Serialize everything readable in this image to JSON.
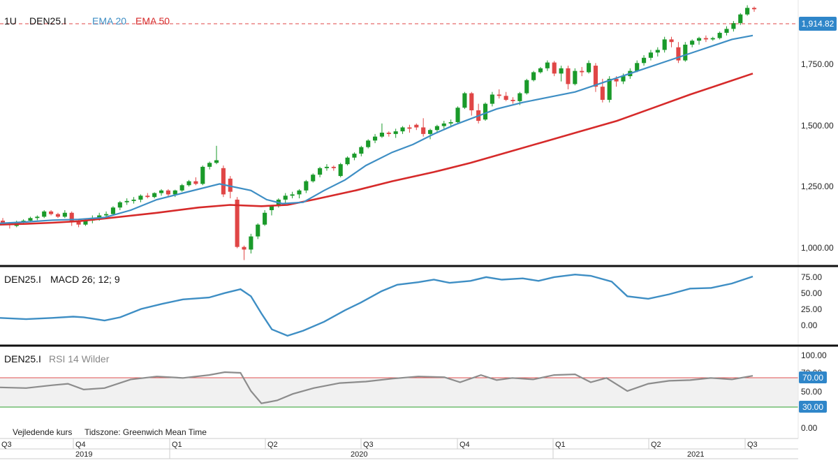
{
  "header": {
    "interval": "1U",
    "symbol": "DEN25.I",
    "ema20_label": "EMA 20",
    "ema50_label": "EMA 50",
    "last_price": "1,914.82"
  },
  "colors": {
    "up": "#1a9a2a",
    "down": "#e04646",
    "ema20": "#3e8ec4",
    "ema50": "#d62a2a",
    "macd": "#3e8ec4",
    "rsi": "#8c8c8c",
    "rsi_high": "#e05050",
    "rsi_low": "#2aa02a",
    "price_badge": "#2f86c9",
    "divider": "#111111"
  },
  "price_axis": {
    "labels": [
      "1,750.00",
      "1,500.00",
      "1,250.00",
      "1,000.00"
    ]
  },
  "macd_panel": {
    "symbol": "DEN25.I",
    "title": "MACD 26; 12; 9",
    "axis_labels": [
      "75.00",
      "50.00",
      "25.00",
      "0.00"
    ]
  },
  "rsi_panel": {
    "symbol": "DEN25.I",
    "title": "RSI 14 Wilder",
    "axis_labels": [
      "100.00",
      "70.00",
      "50.00",
      "30.00",
      "0.00"
    ],
    "badge_high": "70.00",
    "badge_low": "30.00"
  },
  "footer": {
    "note": "Vejledende kurs",
    "timezone": "Tidszone: Greenwich Mean Time"
  },
  "time_axis": {
    "quarters": [
      "Q3",
      "Q4",
      "Q1",
      "Q2",
      "Q3",
      "Q4",
      "Q1",
      "Q2",
      "Q3"
    ],
    "years": [
      "2019",
      "2020",
      "2021"
    ]
  },
  "chart_data": {
    "type": "candlestick",
    "title": "DEN25.I",
    "interval": "1U",
    "price_range": [
      940,
      1950
    ],
    "last_value": 1914.82,
    "candles": [
      [
        1110,
        1120,
        1095,
        1100
      ],
      [
        1100,
        1105,
        1080,
        1095
      ],
      [
        1090,
        1110,
        1085,
        1105
      ],
      [
        1105,
        1115,
        1100,
        1110
      ],
      [
        1110,
        1125,
        1105,
        1120
      ],
      [
        1120,
        1130,
        1112,
        1125
      ],
      [
        1125,
        1150,
        1120,
        1145
      ],
      [
        1145,
        1150,
        1130,
        1135
      ],
      [
        1135,
        1140,
        1120,
        1125
      ],
      [
        1125,
        1150,
        1120,
        1140
      ],
      [
        1140,
        1145,
        1090,
        1105
      ],
      [
        1105,
        1115,
        1085,
        1095
      ],
      [
        1095,
        1115,
        1090,
        1110
      ],
      [
        1110,
        1130,
        1100,
        1120
      ],
      [
        1120,
        1140,
        1110,
        1130
      ],
      [
        1130,
        1145,
        1120,
        1135
      ],
      [
        1135,
        1165,
        1130,
        1160
      ],
      [
        1160,
        1185,
        1150,
        1180
      ],
      [
        1180,
        1195,
        1170,
        1185
      ],
      [
        1185,
        1200,
        1175,
        1190
      ],
      [
        1190,
        1210,
        1180,
        1205
      ],
      [
        1205,
        1215,
        1195,
        1200
      ],
      [
        1200,
        1218,
        1195,
        1215
      ],
      [
        1215,
        1230,
        1205,
        1225
      ],
      [
        1225,
        1230,
        1200,
        1210
      ],
      [
        1210,
        1228,
        1200,
        1225
      ],
      [
        1225,
        1250,
        1220,
        1245
      ],
      [
        1245,
        1265,
        1240,
        1260
      ],
      [
        1260,
        1275,
        1245,
        1250
      ],
      [
        1250,
        1320,
        1245,
        1315
      ],
      [
        1315,
        1335,
        1305,
        1330
      ],
      [
        1330,
        1395,
        1325,
        1340
      ],
      [
        1310,
        1320,
        1200,
        1210
      ],
      [
        1270,
        1280,
        1195,
        1220
      ],
      [
        1190,
        1200,
        1005,
        1010
      ],
      [
        1010,
        1015,
        960,
        1000
      ],
      [
        1000,
        1060,
        985,
        1050
      ],
      [
        1050,
        1100,
        1040,
        1095
      ],
      [
        1095,
        1150,
        1090,
        1140
      ],
      [
        1150,
        1170,
        1130,
        1165
      ],
      [
        1165,
        1195,
        1160,
        1190
      ],
      [
        1190,
        1215,
        1175,
        1205
      ],
      [
        1205,
        1220,
        1195,
        1210
      ],
      [
        1210,
        1230,
        1195,
        1225
      ],
      [
        1225,
        1265,
        1215,
        1260
      ],
      [
        1260,
        1290,
        1255,
        1285
      ],
      [
        1285,
        1315,
        1275,
        1310
      ],
      [
        1310,
        1325,
        1300,
        1315
      ],
      [
        1315,
        1320,
        1300,
        1310
      ],
      [
        1280,
        1330,
        1275,
        1325
      ],
      [
        1325,
        1355,
        1320,
        1350
      ],
      [
        1350,
        1370,
        1340,
        1365
      ],
      [
        1365,
        1395,
        1355,
        1390
      ],
      [
        1390,
        1420,
        1385,
        1415
      ],
      [
        1415,
        1440,
        1405,
        1430
      ],
      [
        1430,
        1480,
        1425,
        1445
      ],
      [
        1445,
        1450,
        1430,
        1440
      ],
      [
        1440,
        1460,
        1425,
        1450
      ],
      [
        1450,
        1470,
        1440,
        1465
      ],
      [
        1465,
        1475,
        1445,
        1460
      ],
      [
        1475,
        1480,
        1455,
        1465
      ],
      [
        1465,
        1500,
        1430,
        1440
      ],
      [
        1440,
        1460,
        1420,
        1455
      ],
      [
        1455,
        1475,
        1445,
        1470
      ],
      [
        1470,
        1490,
        1460,
        1480
      ],
      [
        1480,
        1495,
        1465,
        1485
      ],
      [
        1485,
        1545,
        1480,
        1540
      ],
      [
        1540,
        1600,
        1535,
        1595
      ],
      [
        1595,
        1600,
        1510,
        1530
      ],
      [
        1530,
        1555,
        1480,
        1490
      ],
      [
        1495,
        1560,
        1490,
        1555
      ],
      [
        1555,
        1600,
        1545,
        1590
      ],
      [
        1590,
        1610,
        1575,
        1585
      ],
      [
        1585,
        1600,
        1565,
        1570
      ],
      [
        1570,
        1580,
        1555,
        1565
      ],
      [
        1565,
        1600,
        1550,
        1595
      ],
      [
        1595,
        1650,
        1590,
        1645
      ],
      [
        1645,
        1680,
        1640,
        1675
      ],
      [
        1675,
        1695,
        1670,
        1690
      ],
      [
        1690,
        1720,
        1680,
        1712
      ],
      [
        1712,
        1718,
        1660,
        1670
      ],
      [
        1670,
        1700,
        1640,
        1690
      ],
      [
        1690,
        1700,
        1610,
        1630
      ],
      [
        1630,
        1690,
        1625,
        1680
      ],
      [
        1680,
        1695,
        1660,
        1675
      ],
      [
        1675,
        1720,
        1670,
        1710
      ],
      [
        1700,
        1710,
        1600,
        1620
      ],
      [
        1620,
        1650,
        1560,
        1570
      ],
      [
        1570,
        1660,
        1560,
        1650
      ],
      [
        1650,
        1660,
        1620,
        1640
      ],
      [
        1640,
        1670,
        1630,
        1660
      ],
      [
        1660,
        1690,
        1650,
        1680
      ],
      [
        1680,
        1720,
        1675,
        1710
      ],
      [
        1710,
        1740,
        1700,
        1730
      ],
      [
        1730,
        1760,
        1720,
        1750
      ],
      [
        1750,
        1770,
        1735,
        1760
      ],
      [
        1760,
        1810,
        1750,
        1800
      ],
      [
        1800,
        1810,
        1770,
        1790
      ],
      [
        1770,
        1790,
        1710,
        1720
      ],
      [
        1720,
        1790,
        1715,
        1780
      ],
      [
        1780,
        1800,
        1770,
        1795
      ],
      [
        1795,
        1810,
        1780,
        1805
      ],
      [
        1805,
        1815,
        1790,
        1800
      ],
      [
        1800,
        1810,
        1795,
        1805
      ],
      [
        1805,
        1830,
        1800,
        1825
      ],
      [
        1825,
        1850,
        1815,
        1840
      ],
      [
        1840,
        1870,
        1830,
        1862
      ],
      [
        1862,
        1900,
        1855,
        1895
      ],
      [
        1895,
        1930,
        1890,
        1920
      ],
      [
        1920,
        1925,
        1905,
        1914.82
      ]
    ],
    "ema20": [
      [
        0,
        1100
      ],
      [
        0.05,
        1105
      ],
      [
        0.1,
        1112
      ],
      [
        0.15,
        1115
      ],
      [
        0.2,
        1122
      ],
      [
        0.25,
        1150
      ],
      [
        0.3,
        1190
      ],
      [
        0.35,
        1215
      ],
      [
        0.42,
        1250
      ],
      [
        0.48,
        1225
      ],
      [
        0.51,
        1190
      ],
      [
        0.54,
        1175
      ],
      [
        0.58,
        1180
      ],
      [
        0.62,
        1225
      ],
      [
        0.66,
        1265
      ],
      [
        0.7,
        1320
      ],
      [
        0.75,
        1370
      ],
      [
        0.79,
        1400
      ],
      [
        0.83,
        1440
      ],
      [
        0.87,
        1475
      ],
      [
        0.91,
        1505
      ],
      [
        0.95,
        1535
      ],
      [
        1.0,
        1560
      ],
      [
        1.05,
        1580
      ],
      [
        1.1,
        1600
      ],
      [
        1.16,
        1640
      ],
      [
        1.22,
        1680
      ],
      [
        1.28,
        1720
      ],
      [
        1.34,
        1760
      ],
      [
        1.4,
        1800
      ],
      [
        1.44,
        1815
      ]
    ],
    "ema50": [
      [
        0,
        1095
      ],
      [
        0.05,
        1098
      ],
      [
        0.1,
        1102
      ],
      [
        0.15,
        1108
      ],
      [
        0.2,
        1118
      ],
      [
        0.3,
        1140
      ],
      [
        0.38,
        1160
      ],
      [
        0.44,
        1170
      ],
      [
        0.5,
        1165
      ],
      [
        0.55,
        1170
      ],
      [
        0.6,
        1190
      ],
      [
        0.68,
        1225
      ],
      [
        0.75,
        1260
      ],
      [
        0.83,
        1295
      ],
      [
        0.9,
        1330
      ],
      [
        0.97,
        1370
      ],
      [
        1.04,
        1410
      ],
      [
        1.11,
        1450
      ],
      [
        1.18,
        1490
      ],
      [
        1.25,
        1540
      ],
      [
        1.32,
        1590
      ],
      [
        1.38,
        1630
      ],
      [
        1.44,
        1670
      ]
    ],
    "macd": {
      "name": "MACD 26; 12; 9",
      "range": [
        -30,
        85
      ],
      "points": [
        [
          0,
          8
        ],
        [
          0.05,
          6
        ],
        [
          0.1,
          8
        ],
        [
          0.14,
          10
        ],
        [
          0.16,
          9
        ],
        [
          0.2,
          4
        ],
        [
          0.23,
          9
        ],
        [
          0.27,
          22
        ],
        [
          0.31,
          30
        ],
        [
          0.35,
          37
        ],
        [
          0.4,
          40
        ],
        [
          0.43,
          47
        ],
        [
          0.46,
          53
        ],
        [
          0.48,
          42
        ],
        [
          0.5,
          15
        ],
        [
          0.52,
          -10
        ],
        [
          0.55,
          -20
        ],
        [
          0.58,
          -12
        ],
        [
          0.62,
          2
        ],
        [
          0.66,
          20
        ],
        [
          0.69,
          32
        ],
        [
          0.73,
          50
        ],
        [
          0.76,
          60
        ],
        [
          0.8,
          64
        ],
        [
          0.83,
          68
        ],
        [
          0.86,
          63
        ],
        [
          0.9,
          66
        ],
        [
          0.93,
          72
        ],
        [
          0.96,
          68
        ],
        [
          1.0,
          70
        ],
        [
          1.03,
          66
        ],
        [
          1.06,
          72
        ],
        [
          1.1,
          76
        ],
        [
          1.13,
          74
        ],
        [
          1.17,
          65
        ],
        [
          1.2,
          42
        ],
        [
          1.24,
          38
        ],
        [
          1.28,
          45
        ],
        [
          1.32,
          54
        ],
        [
          1.36,
          55
        ],
        [
          1.4,
          62
        ],
        [
          1.44,
          73
        ]
      ]
    },
    "rsi": {
      "name": "RSI 14 Wilder",
      "range": [
        0,
        100
      ],
      "levels": [
        70,
        30
      ],
      "points": [
        [
          0,
          55
        ],
        [
          0.05,
          54
        ],
        [
          0.1,
          58
        ],
        [
          0.13,
          60
        ],
        [
          0.16,
          52
        ],
        [
          0.2,
          54
        ],
        [
          0.25,
          66
        ],
        [
          0.3,
          70
        ],
        [
          0.35,
          68
        ],
        [
          0.4,
          72
        ],
        [
          0.43,
          76
        ],
        [
          0.46,
          75
        ],
        [
          0.48,
          50
        ],
        [
          0.5,
          33
        ],
        [
          0.53,
          37
        ],
        [
          0.56,
          46
        ],
        [
          0.6,
          54
        ],
        [
          0.65,
          61
        ],
        [
          0.7,
          63
        ],
        [
          0.75,
          67
        ],
        [
          0.8,
          70
        ],
        [
          0.85,
          69
        ],
        [
          0.88,
          62
        ],
        [
          0.92,
          72
        ],
        [
          0.95,
          65
        ],
        [
          0.98,
          68
        ],
        [
          1.02,
          66
        ],
        [
          1.06,
          72
        ],
        [
          1.1,
          73
        ],
        [
          1.13,
          62
        ],
        [
          1.16,
          68
        ],
        [
          1.2,
          50
        ],
        [
          1.24,
          60
        ],
        [
          1.28,
          64
        ],
        [
          1.32,
          65
        ],
        [
          1.36,
          68
        ],
        [
          1.4,
          66
        ],
        [
          1.44,
          71
        ]
      ]
    }
  }
}
